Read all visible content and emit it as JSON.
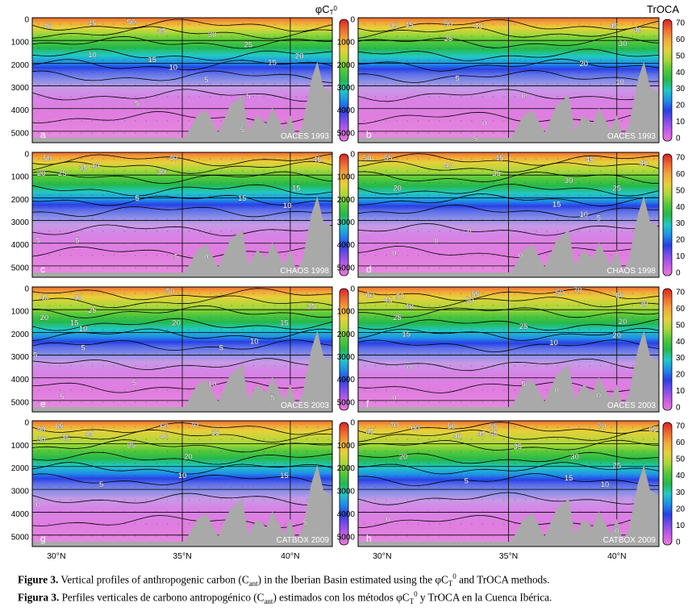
{
  "figure": {
    "method_titles": {
      "left_html": "φC<tspan baseline-shift='-30%' font-size='8'>T</tspan><tspan baseline-shift='40%' font-size='8'>0</tspan>",
      "left": "φCT0",
      "right": "TrOCA"
    },
    "y_ticks": [
      "0",
      "1000",
      "2000",
      "3000",
      "4000",
      "5000"
    ],
    "x_ticks": [
      "30°N",
      "35°N",
      "40°N"
    ],
    "colorbar_ticks": [
      "70",
      "60",
      "50",
      "40",
      "30",
      "20",
      "10",
      "0"
    ],
    "panels": [
      {
        "letter": "a",
        "cruise": "OACES 1993",
        "side": "left",
        "contours": [
          {
            "v": "40",
            "x": 0.05,
            "y": 0.06
          },
          {
            "v": "45",
            "x": 0.2,
            "y": 0.04
          },
          {
            "v": "50",
            "x": 0.33,
            "y": 0.03
          },
          {
            "v": "35",
            "x": 0.43,
            "y": 0.1
          },
          {
            "v": "30",
            "x": 0.6,
            "y": 0.13
          },
          {
            "v": "25",
            "x": 0.72,
            "y": 0.21
          },
          {
            "v": "10",
            "x": 0.2,
            "y": 0.29
          },
          {
            "v": "15",
            "x": 0.4,
            "y": 0.33
          },
          {
            "v": "10",
            "x": 0.47,
            "y": 0.39
          },
          {
            "v": "20",
            "x": 0.89,
            "y": 0.3
          },
          {
            "v": "15",
            "x": 0.8,
            "y": 0.35
          },
          {
            "v": "5",
            "x": 0.58,
            "y": 0.49
          },
          {
            "v": "5",
            "x": 0.35,
            "y": 0.68
          },
          {
            "v": "5",
            "x": 0.72,
            "y": 0.62
          },
          {
            "v": "5",
            "x": 0.7,
            "y": 0.89
          }
        ]
      },
      {
        "letter": "b",
        "cruise": "OACES 1993",
        "side": "right",
        "contours": [
          {
            "v": "35",
            "x": 0.12,
            "y": 0.06
          },
          {
            "v": "45",
            "x": 0.17,
            "y": 0.05
          },
          {
            "v": "50",
            "x": 0.3,
            "y": 0.04
          },
          {
            "v": "40",
            "x": 0.4,
            "y": 0.06
          },
          {
            "v": "45",
            "x": 0.85,
            "y": 0.06
          },
          {
            "v": "40",
            "x": 0.93,
            "y": 0.09
          },
          {
            "v": "30",
            "x": 0.88,
            "y": 0.2
          },
          {
            "v": "25",
            "x": 0.3,
            "y": 0.16
          },
          {
            "v": "20",
            "x": 0.75,
            "y": 0.36
          },
          {
            "v": "10",
            "x": 0.87,
            "y": 0.51
          },
          {
            "v": "5",
            "x": 0.33,
            "y": 0.48
          },
          {
            "v": "0",
            "x": 0.55,
            "y": 0.62
          },
          {
            "v": "0",
            "x": 0.42,
            "y": 0.84
          },
          {
            "v": "5",
            "x": 0.39,
            "y": 0.96
          }
        ]
      },
      {
        "letter": "c",
        "cruise": "CHAOS 1998",
        "side": "left",
        "contours": [
          {
            "v": "50",
            "x": 0.05,
            "y": 0.04
          },
          {
            "v": "20",
            "x": 0.03,
            "y": 0.16
          },
          {
            "v": "25",
            "x": 0.1,
            "y": 0.16
          },
          {
            "v": "35",
            "x": 0.17,
            "y": 0.12
          },
          {
            "v": "40",
            "x": 0.21,
            "y": 0.1
          },
          {
            "v": "40",
            "x": 0.47,
            "y": 0.04
          },
          {
            "v": "45",
            "x": 0.95,
            "y": 0.05
          },
          {
            "v": "30",
            "x": 0.43,
            "y": 0.15
          },
          {
            "v": "5",
            "x": 0.35,
            "y": 0.36
          },
          {
            "v": "15",
            "x": 0.7,
            "y": 0.36
          },
          {
            "v": "15",
            "x": 0.88,
            "y": 0.28
          },
          {
            "v": "10",
            "x": 0.85,
            "y": 0.42
          },
          {
            "v": "5",
            "x": 0.15,
            "y": 0.7
          },
          {
            "v": "5",
            "x": 0.02,
            "y": 0.7
          },
          {
            "v": "5",
            "x": 0.48,
            "y": 0.83
          },
          {
            "v": "0",
            "x": 0.58,
            "y": 0.83
          }
        ]
      },
      {
        "letter": "d",
        "cruise": "CHAOS 1998",
        "side": "right",
        "contours": [
          {
            "v": "50",
            "x": 0.03,
            "y": 0.04
          },
          {
            "v": "55",
            "x": 0.1,
            "y": 0.04
          },
          {
            "v": "40",
            "x": 0.3,
            "y": 0.1
          },
          {
            "v": "45",
            "x": 0.47,
            "y": 0.04
          },
          {
            "v": "45",
            "x": 0.77,
            "y": 0.05
          },
          {
            "v": "40",
            "x": 0.95,
            "y": 0.08
          },
          {
            "v": "35",
            "x": 0.46,
            "y": 0.16
          },
          {
            "v": "30",
            "x": 0.7,
            "y": 0.22
          },
          {
            "v": "25",
            "x": 0.86,
            "y": 0.28
          },
          {
            "v": "20",
            "x": 0.13,
            "y": 0.28
          },
          {
            "v": "15",
            "x": 0.66,
            "y": 0.41
          },
          {
            "v": "10",
            "x": 0.75,
            "y": 0.49
          },
          {
            "v": "5",
            "x": 0.8,
            "y": 0.52
          },
          {
            "v": "0",
            "x": 0.37,
            "y": 0.62
          },
          {
            "v": "0",
            "x": 0.26,
            "y": 0.7
          },
          {
            "v": "0",
            "x": 0.12,
            "y": 0.8
          },
          {
            "v": "0",
            "x": 0.54,
            "y": 0.82
          }
        ]
      },
      {
        "letter": "e",
        "cruise": "OACES 2003",
        "side": "left",
        "contours": [
          {
            "v": "45",
            "x": 0.04,
            "y": 0.08
          },
          {
            "v": "40",
            "x": 0.15,
            "y": 0.08
          },
          {
            "v": "50",
            "x": 0.46,
            "y": 0.03
          },
          {
            "v": "35",
            "x": 0.93,
            "y": 0.15
          },
          {
            "v": "25",
            "x": 0.2,
            "y": 0.18
          },
          {
            "v": "20",
            "x": 0.04,
            "y": 0.24
          },
          {
            "v": "15",
            "x": 0.14,
            "y": 0.28
          },
          {
            "v": "10",
            "x": 0.17,
            "y": 0.33
          },
          {
            "v": "20",
            "x": 0.48,
            "y": 0.28
          },
          {
            "v": "15",
            "x": 0.84,
            "y": 0.28
          },
          {
            "v": "5",
            "x": 0.17,
            "y": 0.48
          },
          {
            "v": "5",
            "x": 0.63,
            "y": 0.48
          },
          {
            "v": "10",
            "x": 0.74,
            "y": 0.43
          },
          {
            "v": "5",
            "x": 0.01,
            "y": 0.54
          },
          {
            "v": "5",
            "x": 0.34,
            "y": 0.76
          },
          {
            "v": "10",
            "x": 0.6,
            "y": 0.77
          },
          {
            "v": "5",
            "x": 0.8,
            "y": 0.88
          },
          {
            "v": "5",
            "x": 0.1,
            "y": 0.87
          }
        ]
      },
      {
        "letter": "f",
        "cruise": "OACES 2003",
        "side": "right",
        "contours": [
          {
            "v": "60",
            "x": 0.04,
            "y": 0.06
          },
          {
            "v": "45",
            "x": 0.1,
            "y": 0.1
          },
          {
            "v": "50",
            "x": 0.14,
            "y": 0.07
          },
          {
            "v": "40",
            "x": 0.17,
            "y": 0.15
          },
          {
            "v": "55",
            "x": 0.39,
            "y": 0.05
          },
          {
            "v": "50",
            "x": 0.37,
            "y": 0.1
          },
          {
            "v": "50",
            "x": 0.67,
            "y": 0.04
          },
          {
            "v": "70",
            "x": 0.73,
            "y": 0.02
          },
          {
            "v": "60",
            "x": 0.87,
            "y": 0.06
          },
          {
            "v": "30",
            "x": 0.95,
            "y": 0.13
          },
          {
            "v": "25",
            "x": 0.13,
            "y": 0.24
          },
          {
            "v": "25",
            "x": 0.55,
            "y": 0.31
          },
          {
            "v": "20",
            "x": 0.88,
            "y": 0.27
          },
          {
            "v": "15",
            "x": 0.16,
            "y": 0.37
          },
          {
            "v": "10",
            "x": 0.65,
            "y": 0.44
          },
          {
            "v": "20",
            "x": 0.86,
            "y": 0.38
          },
          {
            "v": "0",
            "x": 0.17,
            "y": 0.64
          },
          {
            "v": "5",
            "x": 0.55,
            "y": 0.77
          },
          {
            "v": "0",
            "x": 0.66,
            "y": 0.82
          },
          {
            "v": "0",
            "x": 0.8,
            "y": 0.86
          },
          {
            "v": "0",
            "x": 0.12,
            "y": 0.88
          }
        ]
      },
      {
        "letter": "g",
        "cruise": "CATBOX 2009",
        "side": "left",
        "contours": [
          {
            "v": "50",
            "x": 0.03,
            "y": 0.06
          },
          {
            "v": "65",
            "x": 0.09,
            "y": 0.04
          },
          {
            "v": "30",
            "x": 0.03,
            "y": 0.14
          },
          {
            "v": "35",
            "x": 0.11,
            "y": 0.13
          },
          {
            "v": "45",
            "x": 0.19,
            "y": 0.1
          },
          {
            "v": "60",
            "x": 0.44,
            "y": 0.04
          },
          {
            "v": "40",
            "x": 0.44,
            "y": 0.12
          },
          {
            "v": "70",
            "x": 0.54,
            "y": 0.03
          },
          {
            "v": "55",
            "x": 0.61,
            "y": 0.09
          },
          {
            "v": "25",
            "x": 0.33,
            "y": 0.19
          },
          {
            "v": "20",
            "x": 0.52,
            "y": 0.28
          },
          {
            "v": "10",
            "x": 0.5,
            "y": 0.43
          },
          {
            "v": "15",
            "x": 0.84,
            "y": 0.43
          },
          {
            "v": "5",
            "x": 0.23,
            "y": 0.5
          },
          {
            "v": "0",
            "x": 0.02,
            "y": 0.66
          },
          {
            "v": "5",
            "x": 0.91,
            "y": 0.8
          }
        ]
      },
      {
        "letter": "h",
        "cruise": "CATBOX 2009",
        "side": "right",
        "contours": [
          {
            "v": "45",
            "x": 0.04,
            "y": 0.08
          },
          {
            "v": "70",
            "x": 0.12,
            "y": 0.03
          },
          {
            "v": "60",
            "x": 0.19,
            "y": 0.05
          },
          {
            "v": "50",
            "x": 0.31,
            "y": 0.04
          },
          {
            "v": "55",
            "x": 0.45,
            "y": 0.04
          },
          {
            "v": "40",
            "x": 0.33,
            "y": 0.12
          },
          {
            "v": "45",
            "x": 0.41,
            "y": 0.1
          },
          {
            "v": "55",
            "x": 0.45,
            "y": 0.1
          },
          {
            "v": "70",
            "x": 0.81,
            "y": 0.04
          },
          {
            "v": "65",
            "x": 0.98,
            "y": 0.06
          },
          {
            "v": "35",
            "x": 0.53,
            "y": 0.2
          },
          {
            "v": "30",
            "x": 0.72,
            "y": 0.28
          },
          {
            "v": "25",
            "x": 0.86,
            "y": 0.35
          },
          {
            "v": "20",
            "x": 0.15,
            "y": 0.28
          },
          {
            "v": "15",
            "x": 0.7,
            "y": 0.45
          },
          {
            "v": "10",
            "x": 0.82,
            "y": 0.5
          },
          {
            "v": "5",
            "x": 0.36,
            "y": 0.47
          },
          {
            "v": "0",
            "x": 0.1,
            "y": 0.78
          },
          {
            "v": "0",
            "x": 0.86,
            "y": 0.87
          }
        ]
      }
    ]
  },
  "caption": {
    "english_label": "Figure 3.",
    "english_pre": " Vertical profiles of anthropogenic carbon (C",
    "english_sub": "ant",
    "english_mid": ") in the Iberian Basin estimated using the φC",
    "english_T": "T",
    "english_sup": "0",
    "english_post": " and TrOCA methods.",
    "spanish_label": "Figura 3.",
    "spanish_pre": " Perfiles verticales de carbono antropogénico (C",
    "spanish_sub": "ant",
    "spanish_mid": ") estimados con los métodos φC",
    "spanish_T": "T",
    "spanish_sup": "0",
    "spanish_post": " y TrOCA en la Cuenca Ibérica."
  },
  "colors": {
    "colormap": [
      "#e87bd6",
      "#c75ce6",
      "#7c4ee8",
      "#2940e6",
      "#1f8fe8",
      "#22c9c5",
      "#25b84c",
      "#54c83a",
      "#a9d83a",
      "#e7d03a",
      "#f2a83a",
      "#ee6a2e",
      "#d7212a"
    ],
    "seafloor": "#a9a9a9",
    "contour": "#000000"
  }
}
